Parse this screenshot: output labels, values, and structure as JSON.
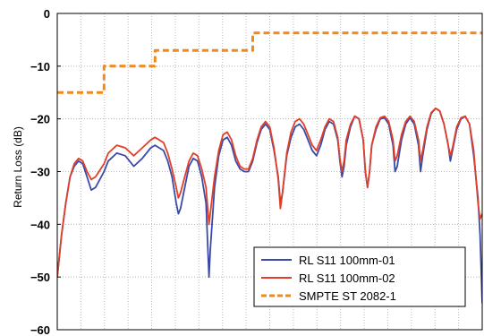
{
  "chart_data": {
    "type": "line",
    "title": "",
    "xlabel": "",
    "ylabel": "Return Loss (dB)",
    "xlim": [
      0,
      100
    ],
    "ylim": [
      -60,
      0
    ],
    "yticks": [
      0,
      -10,
      -20,
      -30,
      -40,
      -50,
      -60
    ],
    "x_gridlines": 18,
    "grid": true,
    "legend": "bottom-right",
    "series": [
      {
        "name": "RL S11 100mm-01",
        "color": "#3b4aa8",
        "style": "solid",
        "points": [
          [
            0,
            -50
          ],
          [
            1,
            -42
          ],
          [
            2,
            -36
          ],
          [
            3,
            -31
          ],
          [
            4,
            -29
          ],
          [
            5,
            -28
          ],
          [
            6,
            -28.5
          ],
          [
            7,
            -31
          ],
          [
            8,
            -33.5
          ],
          [
            9,
            -33
          ],
          [
            11,
            -30
          ],
          [
            12,
            -28
          ],
          [
            14,
            -26.5
          ],
          [
            16,
            -27
          ],
          [
            18,
            -29
          ],
          [
            20,
            -27.5
          ],
          [
            22,
            -25.5
          ],
          [
            23,
            -25
          ],
          [
            25,
            -26
          ],
          [
            26,
            -28
          ],
          [
            27,
            -31
          ],
          [
            28,
            -36
          ],
          [
            28.5,
            -38
          ],
          [
            29,
            -37
          ],
          [
            30,
            -33
          ],
          [
            31,
            -29
          ],
          [
            32,
            -27.5
          ],
          [
            33,
            -28
          ],
          [
            34,
            -31
          ],
          [
            35,
            -36
          ],
          [
            35.7,
            -50
          ],
          [
            36,
            -45
          ],
          [
            37,
            -33
          ],
          [
            38,
            -27
          ],
          [
            39,
            -24
          ],
          [
            40,
            -23.5
          ],
          [
            41,
            -25
          ],
          [
            42,
            -28
          ],
          [
            43,
            -29.5
          ],
          [
            44,
            -30
          ],
          [
            45,
            -30
          ],
          [
            46,
            -28
          ],
          [
            47,
            -24.5
          ],
          [
            48,
            -22
          ],
          [
            49,
            -21
          ],
          [
            50,
            -22
          ],
          [
            51,
            -26
          ],
          [
            52,
            -31
          ],
          [
            52.5,
            -36
          ],
          [
            53,
            -34
          ],
          [
            54,
            -27
          ],
          [
            55,
            -23.5
          ],
          [
            56,
            -21.5
          ],
          [
            57,
            -21
          ],
          [
            58,
            -22
          ],
          [
            59,
            -24
          ],
          [
            60,
            -26
          ],
          [
            61,
            -27
          ],
          [
            62,
            -25
          ],
          [
            63,
            -22
          ],
          [
            64,
            -20.5
          ],
          [
            65,
            -21
          ],
          [
            66,
            -24
          ],
          [
            66.5,
            -28
          ],
          [
            67,
            -31
          ],
          [
            67.5,
            -29
          ],
          [
            68,
            -25
          ],
          [
            69,
            -21.5
          ],
          [
            70,
            -19.5
          ],
          [
            71,
            -20
          ],
          [
            72,
            -24
          ],
          [
            72.5,
            -30
          ],
          [
            73,
            -33
          ],
          [
            73.5,
            -30
          ],
          [
            74,
            -25
          ],
          [
            75,
            -22
          ],
          [
            76,
            -20
          ],
          [
            77,
            -19.8
          ],
          [
            78,
            -21
          ],
          [
            79,
            -25
          ],
          [
            79.5,
            -30
          ],
          [
            80,
            -29
          ],
          [
            81,
            -24
          ],
          [
            82,
            -21
          ],
          [
            83,
            -19.8
          ],
          [
            84,
            -21
          ],
          [
            85,
            -25
          ],
          [
            85.5,
            -30
          ],
          [
            86,
            -27
          ],
          [
            87,
            -22
          ],
          [
            88,
            -19
          ],
          [
            89,
            -18
          ],
          [
            90,
            -18.5
          ],
          [
            91,
            -21
          ],
          [
            92,
            -25
          ],
          [
            92.5,
            -28
          ],
          [
            93,
            -26
          ],
          [
            94,
            -22
          ],
          [
            95,
            -20
          ],
          [
            96,
            -19.5
          ],
          [
            97,
            -21
          ],
          [
            98,
            -27
          ],
          [
            99,
            -35
          ],
          [
            99.5,
            -42
          ],
          [
            100,
            -55
          ]
        ]
      },
      {
        "name": "RL S11 100mm-02",
        "color": "#e0402a",
        "style": "solid",
        "points": [
          [
            0,
            -50
          ],
          [
            1,
            -42
          ],
          [
            2,
            -36
          ],
          [
            3,
            -31
          ],
          [
            4,
            -28.5
          ],
          [
            5,
            -27.5
          ],
          [
            6,
            -28
          ],
          [
            7,
            -30
          ],
          [
            8,
            -31.5
          ],
          [
            9,
            -31
          ],
          [
            11,
            -28.5
          ],
          [
            12,
            -26.5
          ],
          [
            14,
            -25
          ],
          [
            16,
            -25.5
          ],
          [
            18,
            -27
          ],
          [
            20,
            -25.5
          ],
          [
            22,
            -24
          ],
          [
            23,
            -23.5
          ],
          [
            25,
            -24.5
          ],
          [
            26,
            -26.5
          ],
          [
            27,
            -29.5
          ],
          [
            28,
            -33
          ],
          [
            28.5,
            -35
          ],
          [
            29,
            -34
          ],
          [
            30,
            -31
          ],
          [
            31,
            -28
          ],
          [
            32,
            -26.5
          ],
          [
            33,
            -27
          ],
          [
            34,
            -29.5
          ],
          [
            35,
            -33
          ],
          [
            35.7,
            -40
          ],
          [
            36,
            -38
          ],
          [
            37,
            -31
          ],
          [
            38,
            -26
          ],
          [
            39,
            -23
          ],
          [
            40,
            -22.5
          ],
          [
            41,
            -24
          ],
          [
            42,
            -27
          ],
          [
            43,
            -29
          ],
          [
            44,
            -29.5
          ],
          [
            45,
            -29.5
          ],
          [
            46,
            -27.5
          ],
          [
            47,
            -24
          ],
          [
            48,
            -21.5
          ],
          [
            49,
            -20.5
          ],
          [
            50,
            -21.5
          ],
          [
            51,
            -25.5
          ],
          [
            52,
            -31.5
          ],
          [
            52.5,
            -37
          ],
          [
            53,
            -34
          ],
          [
            54,
            -26.5
          ],
          [
            55,
            -22.5
          ],
          [
            56,
            -20.5
          ],
          [
            57,
            -20
          ],
          [
            58,
            -21
          ],
          [
            59,
            -23
          ],
          [
            60,
            -25
          ],
          [
            61,
            -26
          ],
          [
            62,
            -24
          ],
          [
            63,
            -21.5
          ],
          [
            64,
            -20
          ],
          [
            65,
            -20.5
          ],
          [
            66,
            -23.5
          ],
          [
            66.5,
            -27.5
          ],
          [
            67,
            -30
          ],
          [
            67.5,
            -28
          ],
          [
            68,
            -24
          ],
          [
            69,
            -21
          ],
          [
            70,
            -19.5
          ],
          [
            71,
            -20
          ],
          [
            72,
            -24
          ],
          [
            72.5,
            -30
          ],
          [
            73,
            -33
          ],
          [
            73.5,
            -30
          ],
          [
            74,
            -25
          ],
          [
            75,
            -21.5
          ],
          [
            76,
            -19.8
          ],
          [
            77,
            -19.5
          ],
          [
            78,
            -20.5
          ],
          [
            79,
            -24
          ],
          [
            79.5,
            -28
          ],
          [
            80,
            -27
          ],
          [
            81,
            -23
          ],
          [
            82,
            -20.5
          ],
          [
            83,
            -19.5
          ],
          [
            84,
            -20.5
          ],
          [
            85,
            -24
          ],
          [
            85.5,
            -28
          ],
          [
            86,
            -26
          ],
          [
            87,
            -21.5
          ],
          [
            88,
            -18.8
          ],
          [
            89,
            -18
          ],
          [
            90,
            -18.5
          ],
          [
            91,
            -21
          ],
          [
            92,
            -25
          ],
          [
            92.5,
            -27
          ],
          [
            93,
            -25.5
          ],
          [
            94,
            -21.5
          ],
          [
            95,
            -19.8
          ],
          [
            96,
            -19.5
          ],
          [
            97,
            -21
          ],
          [
            98,
            -26
          ],
          [
            99,
            -36
          ],
          [
            99.5,
            -39
          ],
          [
            100,
            -38
          ]
        ]
      },
      {
        "name": "SMPTE ST 2082-1",
        "color": "#f08a1e",
        "style": "dashed",
        "points": [
          [
            0,
            -15
          ],
          [
            11,
            -15
          ],
          [
            11,
            -10
          ],
          [
            23,
            -10
          ],
          [
            23,
            -7
          ],
          [
            46,
            -7
          ],
          [
            46,
            -3.7
          ],
          [
            100,
            -3.7
          ]
        ]
      }
    ]
  }
}
